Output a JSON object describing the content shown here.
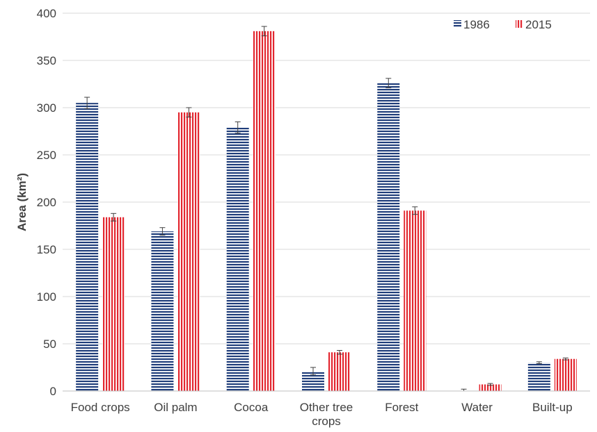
{
  "chart_data": {
    "type": "bar",
    "ylabel": "Area (km²)",
    "ylim": [
      0,
      400
    ],
    "yticks": [
      0,
      50,
      100,
      150,
      200,
      250,
      300,
      350,
      400
    ],
    "grid": true,
    "legend_position": "top-right",
    "categories": [
      [
        "Food crops"
      ],
      [
        "Oil palm"
      ],
      [
        "Cocoa"
      ],
      [
        "Other tree",
        "crops"
      ],
      [
        "Forest"
      ],
      [
        "Water"
      ],
      [
        "Built-up"
      ]
    ],
    "series": [
      {
        "name": "1986",
        "color": "#1f3d7a",
        "pattern": "horizontal-stripes",
        "values": [
          305,
          169,
          279,
          21,
          326,
          0,
          30
        ],
        "errors": [
          6,
          4,
          6,
          4,
          5,
          2,
          1
        ]
      },
      {
        "name": "2015",
        "color": "#e3262f",
        "pattern": "vertical-stripes",
        "values": [
          184,
          295,
          381,
          41,
          191,
          7,
          34
        ],
        "errors": [
          4,
          5,
          5,
          2,
          4,
          1,
          1
        ]
      }
    ]
  }
}
